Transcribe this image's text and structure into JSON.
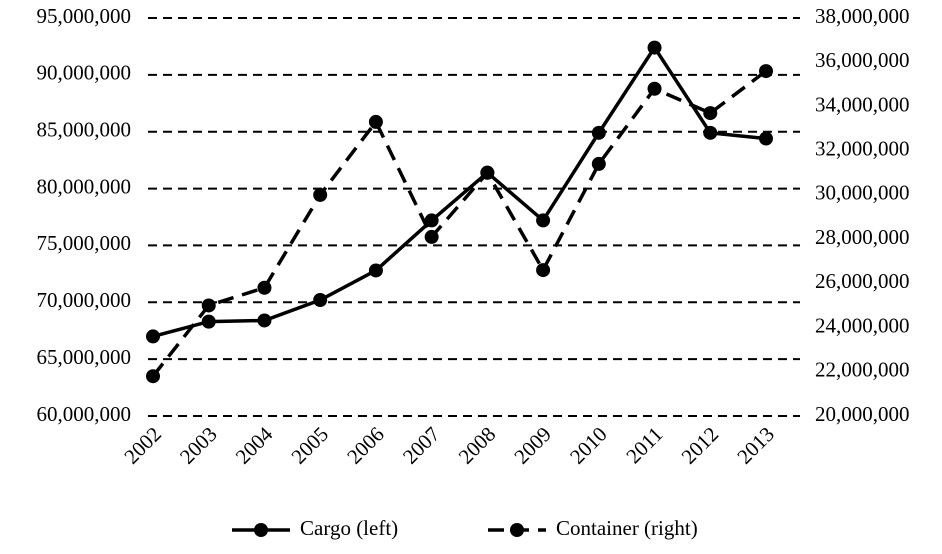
{
  "chart_data": {
    "type": "line",
    "categories": [
      "2002",
      "2003",
      "2004",
      "2005",
      "2006",
      "2007",
      "2008",
      "2009",
      "2010",
      "2011",
      "2012",
      "2013"
    ],
    "series": [
      {
        "name": "Cargo (left)",
        "color": "#000000",
        "style": "solid",
        "axis": "y",
        "values": [
          67000000,
          68300000,
          68400000,
          70200000,
          72800000,
          77200000,
          81400000,
          77200000,
          84900000,
          92400000,
          84900000,
          84400000
        ]
      },
      {
        "name": "Container (right)",
        "color": "#000000",
        "style": "dashed",
        "axis": "y2",
        "values": [
          21800000,
          25000000,
          25800000,
          30000000,
          33300000,
          28100000,
          31000000,
          26600000,
          31400000,
          34800000,
          33700000,
          35600000
        ]
      }
    ],
    "ylim": [
      60000000,
      95000000
    ],
    "yticks": [
      {
        "value": 60000000,
        "label": "60,000,000"
      },
      {
        "value": 65000000,
        "label": "65,000,000"
      },
      {
        "value": 70000000,
        "label": "70,000,000"
      },
      {
        "value": 75000000,
        "label": "75,000,000"
      },
      {
        "value": 80000000,
        "label": "80,000,000"
      },
      {
        "value": 85000000,
        "label": "85,000,000"
      },
      {
        "value": 90000000,
        "label": "90,000,000"
      },
      {
        "value": 95000000,
        "label": "95,000,000"
      }
    ],
    "y2lim": [
      20000000,
      38000000
    ],
    "y2ticks": [
      {
        "value": 20000000,
        "label": "20,000,000"
      },
      {
        "value": 22000000,
        "label": "22,000,000"
      },
      {
        "value": 24000000,
        "label": "24,000,000"
      },
      {
        "value": 26000000,
        "label": "26,000,000"
      },
      {
        "value": 28000000,
        "label": "28,000,000"
      },
      {
        "value": 30000000,
        "label": "30,000,000"
      },
      {
        "value": 32000000,
        "label": "32,000,000"
      },
      {
        "value": 34000000,
        "label": "34,000,000"
      },
      {
        "value": 36000000,
        "label": "36,000,000"
      },
      {
        "value": 38000000,
        "label": "38,000,000"
      }
    ],
    "grid": true,
    "legend": "bottom"
  }
}
